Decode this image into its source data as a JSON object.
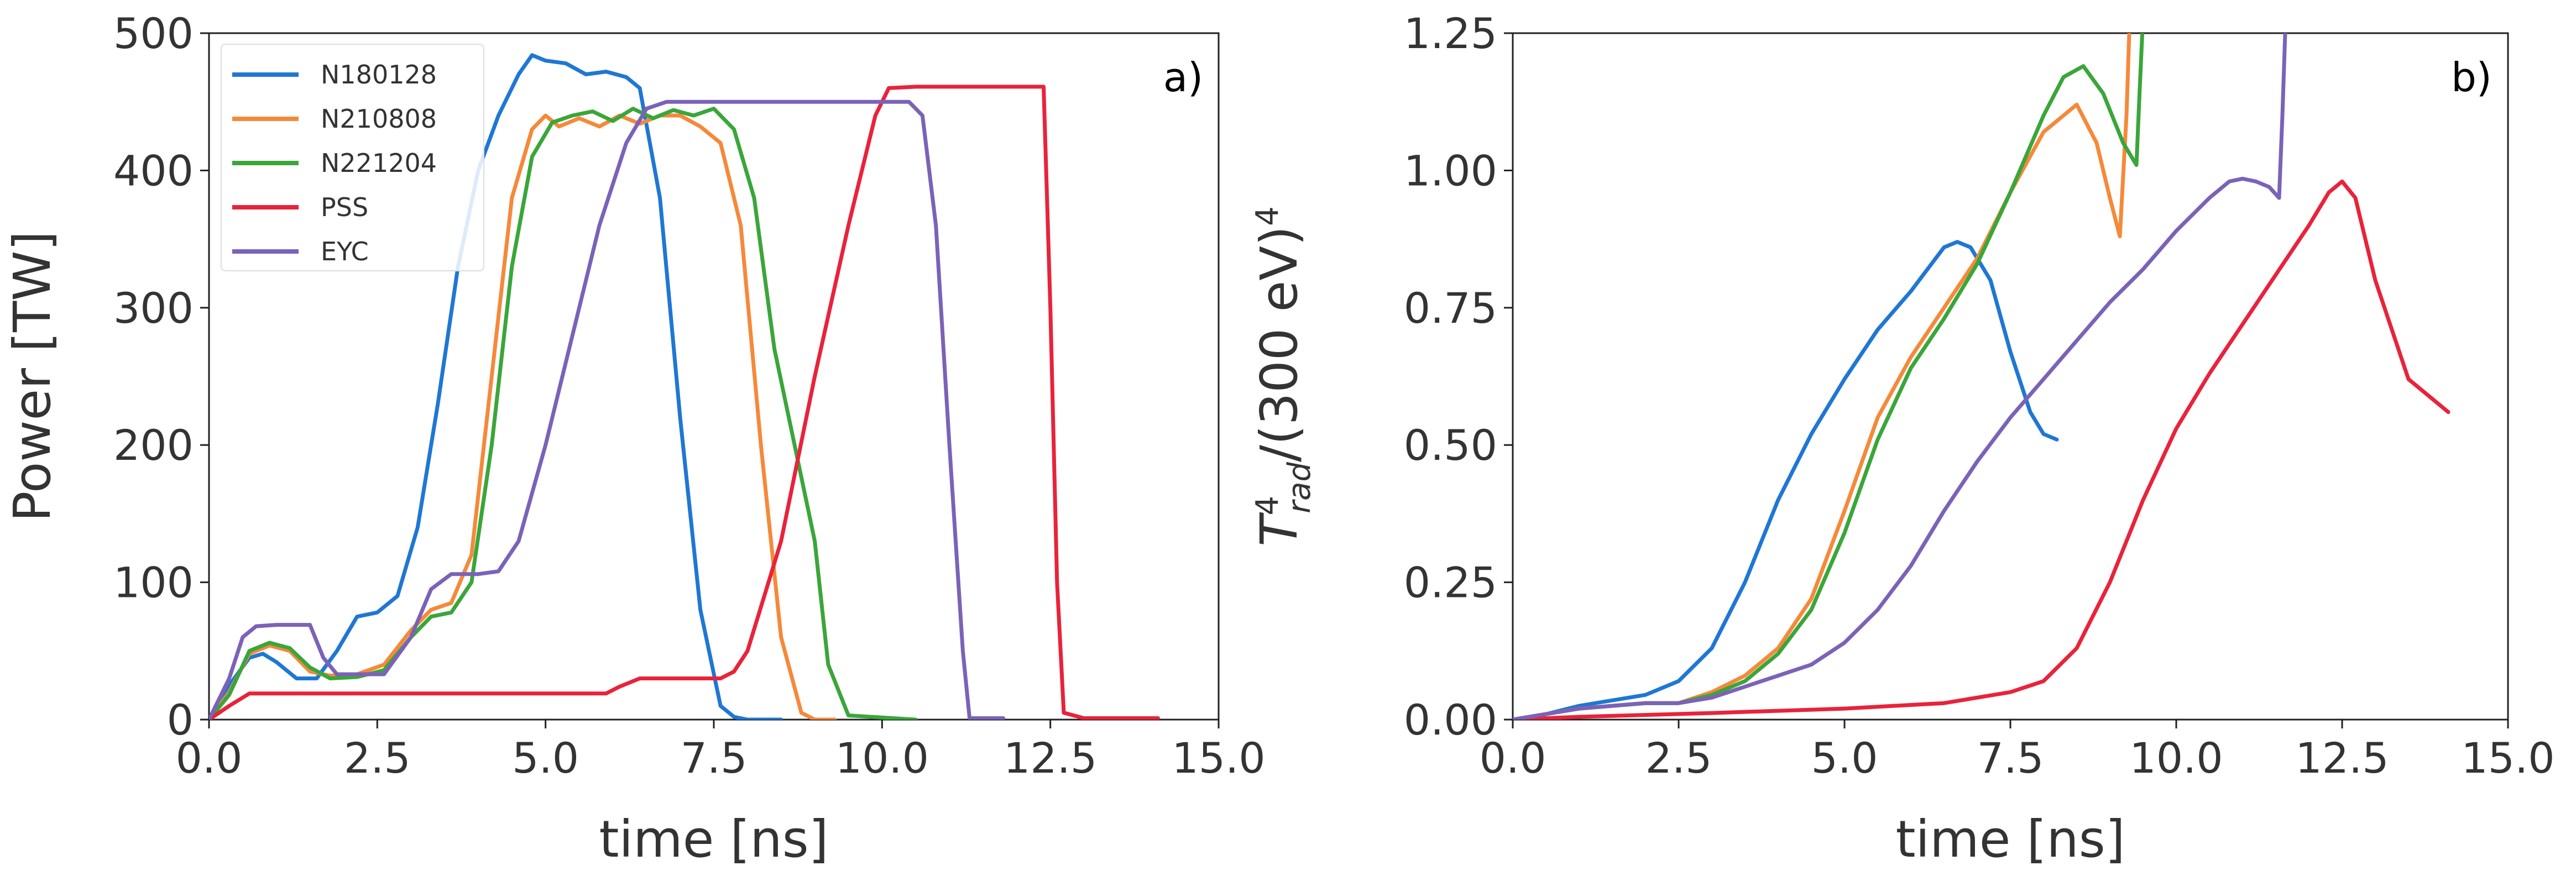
{
  "chart_data": [
    {
      "type": "line",
      "panel_label": "a)",
      "xlabel": "time [ns]",
      "ylabel": "Power [TW]",
      "xlim": [
        0,
        15
      ],
      "ylim": [
        0,
        500
      ],
      "xticks": [
        "0.0",
        "2.5",
        "5.0",
        "7.5",
        "10.0",
        "12.5",
        "15.0"
      ],
      "yticks": [
        "0",
        "100",
        "200",
        "300",
        "400",
        "500"
      ],
      "legend_position": "top-left",
      "series": [
        {
          "name": "N180128",
          "color": "#1f77d4",
          "x": [
            0,
            0.3,
            0.6,
            0.8,
            1.0,
            1.3,
            1.6,
            1.9,
            2.2,
            2.5,
            2.8,
            3.1,
            3.4,
            3.7,
            4.0,
            4.3,
            4.6,
            4.8,
            5.0,
            5.3,
            5.6,
            5.9,
            6.2,
            6.4,
            6.7,
            7.0,
            7.3,
            7.6,
            7.8,
            8.0,
            8.5
          ],
          "y": [
            0,
            25,
            45,
            48,
            42,
            30,
            30,
            50,
            75,
            78,
            90,
            140,
            230,
            330,
            400,
            440,
            470,
            484,
            480,
            478,
            470,
            472,
            468,
            460,
            380,
            220,
            80,
            10,
            2,
            0,
            0
          ]
        },
        {
          "name": "N210808",
          "color": "#f5893a",
          "x": [
            0,
            0.3,
            0.6,
            0.9,
            1.2,
            1.5,
            1.8,
            2.2,
            2.6,
            3.0,
            3.3,
            3.6,
            3.9,
            4.2,
            4.5,
            4.8,
            5.0,
            5.2,
            5.5,
            5.8,
            6.1,
            6.4,
            6.7,
            7.0,
            7.3,
            7.6,
            7.9,
            8.2,
            8.5,
            8.8,
            9.0,
            9.3
          ],
          "y": [
            0,
            20,
            48,
            54,
            50,
            35,
            32,
            33,
            40,
            65,
            80,
            85,
            120,
            250,
            380,
            430,
            440,
            432,
            438,
            432,
            440,
            434,
            440,
            440,
            432,
            420,
            360,
            200,
            60,
            5,
            0,
            0
          ]
        },
        {
          "name": "N221204",
          "color": "#3aa63a",
          "x": [
            0,
            0.3,
            0.6,
            0.9,
            1.2,
            1.5,
            1.8,
            2.2,
            2.6,
            3.0,
            3.3,
            3.6,
            3.9,
            4.2,
            4.5,
            4.8,
            5.1,
            5.4,
            5.7,
            6.0,
            6.3,
            6.6,
            6.9,
            7.2,
            7.5,
            7.8,
            8.1,
            8.4,
            8.7,
            9.0,
            9.2,
            9.5,
            10.5
          ],
          "y": [
            0,
            18,
            50,
            56,
            52,
            38,
            30,
            31,
            36,
            60,
            75,
            78,
            100,
            200,
            330,
            410,
            435,
            440,
            443,
            436,
            445,
            438,
            444,
            440,
            445,
            430,
            380,
            270,
            200,
            130,
            40,
            3,
            0
          ]
        },
        {
          "name": "PSS",
          "color": "#e8233a",
          "x": [
            0,
            0.3,
            0.6,
            1.0,
            3.0,
            5.9,
            6.1,
            6.4,
            7.0,
            7.6,
            7.8,
            8.0,
            8.5,
            9.0,
            9.5,
            9.9,
            10.1,
            10.5,
            11.0,
            12.0,
            12.4,
            12.5,
            12.6,
            12.7,
            13.0,
            14.1
          ],
          "y": [
            0,
            10,
            19,
            19,
            19,
            19,
            24,
            30,
            30,
            30,
            35,
            50,
            130,
            250,
            360,
            440,
            460,
            461,
            461,
            461,
            461,
            300,
            100,
            5,
            1,
            1
          ],
          "x_end": 14.2
        },
        {
          "name": "EYC",
          "color": "#7b62b8",
          "x": [
            0,
            0.3,
            0.5,
            0.7,
            1.0,
            1.5,
            1.7,
            1.9,
            2.2,
            2.6,
            3.0,
            3.3,
            3.6,
            4.0,
            4.3,
            4.6,
            5.0,
            5.4,
            5.8,
            6.2,
            6.5,
            6.8,
            7.0,
            8.0,
            9.0,
            10.0,
            10.4,
            10.6,
            10.8,
            11.0,
            11.2,
            11.3,
            11.8
          ],
          "y": [
            0,
            30,
            60,
            68,
            69,
            69,
            45,
            33,
            33,
            33,
            60,
            95,
            106,
            106,
            108,
            130,
            200,
            280,
            360,
            420,
            445,
            450,
            450,
            450,
            450,
            450,
            450,
            440,
            360,
            200,
            50,
            1,
            1
          ]
        }
      ]
    },
    {
      "type": "line",
      "panel_label": "b)",
      "xlabel": "time [ns]",
      "ylabel": "T_rad^4/(300 eV)^4",
      "ylabel_base": "T",
      "ylabel_sup": "4",
      "ylabel_sub": "rad",
      "ylabel_rest": "/(300 eV)",
      "ylabel_rest_sup": "4",
      "xlim": [
        0,
        15
      ],
      "ylim": [
        0,
        1.25
      ],
      "xticks": [
        "0.0",
        "2.5",
        "5.0",
        "7.5",
        "10.0",
        "12.5",
        "15.0"
      ],
      "yticks": [
        "0.00",
        "0.25",
        "0.50",
        "0.75",
        "1.00",
        "1.25"
      ],
      "series": [
        {
          "name": "N180128",
          "color": "#1f77d4",
          "x": [
            0,
            0.5,
            1.0,
            1.5,
            2.0,
            2.5,
            3.0,
            3.5,
            4.0,
            4.5,
            5.0,
            5.5,
            6.0,
            6.5,
            6.7,
            6.9,
            7.2,
            7.5,
            7.8,
            8.0,
            8.2
          ],
          "y": [
            0,
            0.01,
            0.025,
            0.035,
            0.045,
            0.07,
            0.13,
            0.25,
            0.4,
            0.52,
            0.62,
            0.71,
            0.78,
            0.86,
            0.87,
            0.86,
            0.8,
            0.67,
            0.56,
            0.52,
            0.51
          ]
        },
        {
          "name": "N210808",
          "color": "#f5893a",
          "x": [
            0,
            1.0,
            2.0,
            2.5,
            3.0,
            3.5,
            4.0,
            4.5,
            5.0,
            5.5,
            6.0,
            6.5,
            7.0,
            7.5,
            8.0,
            8.5,
            8.8,
            9.0,
            9.15,
            9.25,
            9.3
          ],
          "y": [
            0,
            0.02,
            0.03,
            0.03,
            0.05,
            0.08,
            0.13,
            0.22,
            0.38,
            0.55,
            0.66,
            0.75,
            0.84,
            0.96,
            1.07,
            1.12,
            1.05,
            0.95,
            0.88,
            1.1,
            1.28
          ]
        },
        {
          "name": "N221204",
          "color": "#3aa63a",
          "x": [
            0,
            1.0,
            2.0,
            2.5,
            3.0,
            3.5,
            4.0,
            4.5,
            5.0,
            5.5,
            6.0,
            6.5,
            7.0,
            7.5,
            8.0,
            8.3,
            8.6,
            8.9,
            9.2,
            9.4,
            9.45,
            9.5
          ],
          "y": [
            0,
            0.02,
            0.03,
            0.03,
            0.045,
            0.07,
            0.12,
            0.2,
            0.34,
            0.51,
            0.64,
            0.73,
            0.83,
            0.96,
            1.1,
            1.17,
            1.19,
            1.14,
            1.05,
            1.01,
            1.15,
            1.28
          ]
        },
        {
          "name": "PSS",
          "color": "#e8233a",
          "x": [
            0,
            1.0,
            3.0,
            5.0,
            6.5,
            7.5,
            8.0,
            8.5,
            9.0,
            9.5,
            10.0,
            10.5,
            11.0,
            11.5,
            12.0,
            12.3,
            12.5,
            12.7,
            13.0,
            13.5,
            14.1
          ],
          "y": [
            0,
            0.005,
            0.012,
            0.02,
            0.03,
            0.05,
            0.07,
            0.13,
            0.25,
            0.4,
            0.53,
            0.63,
            0.72,
            0.81,
            0.9,
            0.96,
            0.98,
            0.95,
            0.8,
            0.62,
            0.56
          ]
        },
        {
          "name": "EYC",
          "color": "#7b62b8",
          "x": [
            0,
            1.0,
            2.0,
            2.5,
            3.0,
            3.5,
            4.0,
            4.5,
            5.0,
            5.5,
            6.0,
            6.5,
            7.0,
            7.5,
            8.0,
            8.5,
            9.0,
            9.5,
            10.0,
            10.5,
            10.8,
            11.0,
            11.2,
            11.4,
            11.55,
            11.6,
            11.65
          ],
          "y": [
            0,
            0.02,
            0.03,
            0.03,
            0.04,
            0.06,
            0.08,
            0.1,
            0.14,
            0.2,
            0.28,
            0.38,
            0.47,
            0.55,
            0.62,
            0.69,
            0.76,
            0.82,
            0.89,
            0.95,
            0.98,
            0.985,
            0.98,
            0.97,
            0.95,
            1.1,
            1.28
          ]
        }
      ]
    }
  ]
}
